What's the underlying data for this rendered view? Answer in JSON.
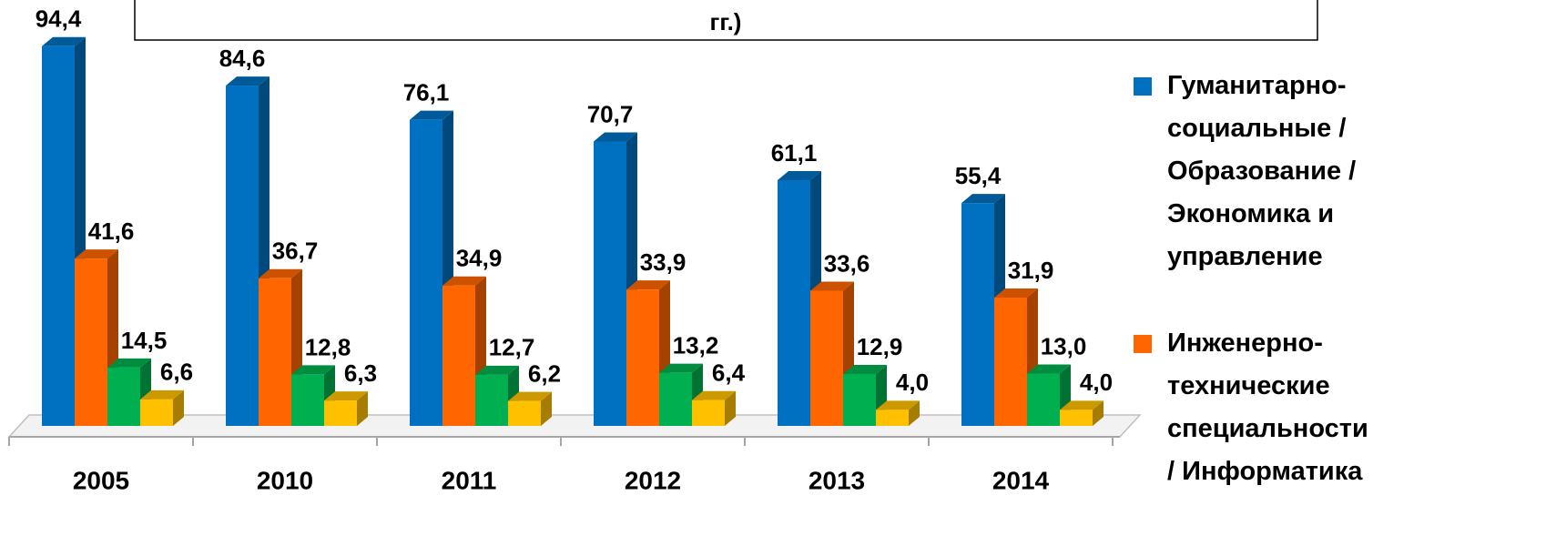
{
  "chart_data": {
    "type": "bar3d",
    "title": "гг.)",
    "categories": [
      "2005",
      "2010",
      "2011",
      "2012",
      "2013",
      "2014"
    ],
    "legend": "right",
    "series": [
      {
        "name": "Гуманитарно-социальные / Образование / Экономика и управление",
        "color": "#0070c0",
        "values": [
          94.4,
          84.6,
          76.1,
          70.7,
          61.1,
          55.4
        ],
        "value_labels": [
          "94,4",
          "84,6",
          "76,1",
          "70,7",
          "61,1",
          "55,4"
        ]
      },
      {
        "name": "Инженерно-технические специальности / Информатика",
        "color": "#ff6600",
        "values": [
          41.6,
          36.7,
          34.9,
          33.9,
          33.6,
          31.9
        ],
        "value_labels": [
          "41,6",
          "36,7",
          "34,9",
          "33,9",
          "33,6",
          "31,9"
        ]
      },
      {
        "color": "#00b050",
        "values": [
          14.5,
          12.8,
          12.7,
          13.2,
          12.9,
          13.0
        ],
        "value_labels": [
          "14,5",
          "12,8",
          "12,7",
          "13,2",
          "12,9",
          "13,0"
        ]
      },
      {
        "color": "#ffc000",
        "values": [
          6.6,
          6.3,
          6.2,
          6.4,
          4.0,
          4.0
        ],
        "value_labels": [
          "6,6",
          "6,3",
          "6,2",
          "6,4",
          "4,0",
          "4,0"
        ]
      }
    ]
  }
}
